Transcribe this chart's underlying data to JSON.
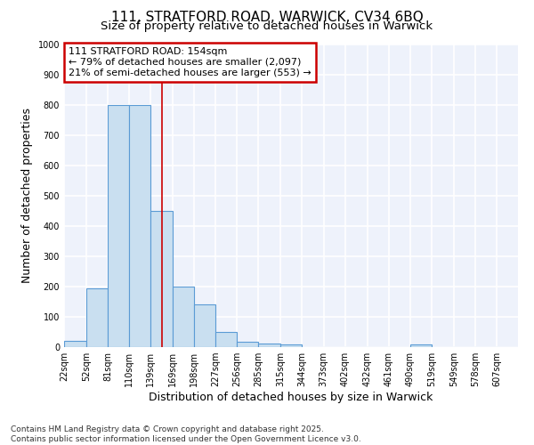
{
  "title_line1": "111, STRATFORD ROAD, WARWICK, CV34 6BQ",
  "title_line2": "Size of property relative to detached houses in Warwick",
  "xlabel": "Distribution of detached houses by size in Warwick",
  "ylabel": "Number of detached properties",
  "categories": [
    "22sqm",
    "52sqm",
    "81sqm",
    "110sqm",
    "139sqm",
    "169sqm",
    "198sqm",
    "227sqm",
    "256sqm",
    "285sqm",
    "315sqm",
    "344sqm",
    "373sqm",
    "402sqm",
    "432sqm",
    "461sqm",
    "490sqm",
    "519sqm",
    "549sqm",
    "578sqm",
    "607sqm"
  ],
  "values": [
    20,
    195,
    800,
    800,
    450,
    200,
    140,
    50,
    18,
    12,
    10,
    0,
    0,
    0,
    0,
    0,
    8,
    0,
    0,
    0,
    0
  ],
  "bar_color": "#c9dff0",
  "bar_edge_color": "#5b9bd5",
  "annotation_line1": "111 STRATFORD ROAD: 154sqm",
  "annotation_line2": "← 79% of detached houses are smaller (2,097)",
  "annotation_line3": "21% of semi-detached houses are larger (553) →",
  "annotation_box_color": "white",
  "annotation_box_edge_color": "#cc0000",
  "vline_x": 154,
  "vline_color": "#cc0000",
  "ylim": [
    0,
    1000
  ],
  "yticks": [
    0,
    100,
    200,
    300,
    400,
    500,
    600,
    700,
    800,
    900,
    1000
  ],
  "bin_edges": [
    22,
    52,
    81,
    110,
    139,
    169,
    198,
    227,
    256,
    285,
    315,
    344,
    373,
    402,
    432,
    461,
    490,
    519,
    549,
    578,
    607,
    636
  ],
  "footer_text": "Contains HM Land Registry data © Crown copyright and database right 2025.\nContains public sector information licensed under the Open Government Licence v3.0.",
  "background_color": "#ffffff",
  "plot_bg_color": "#eef2fb",
  "grid_color": "#ffffff",
  "title_fontsize": 11,
  "subtitle_fontsize": 9.5,
  "axis_label_fontsize": 9,
  "tick_fontsize": 7,
  "annotation_fontsize": 8,
  "footer_fontsize": 6.5
}
